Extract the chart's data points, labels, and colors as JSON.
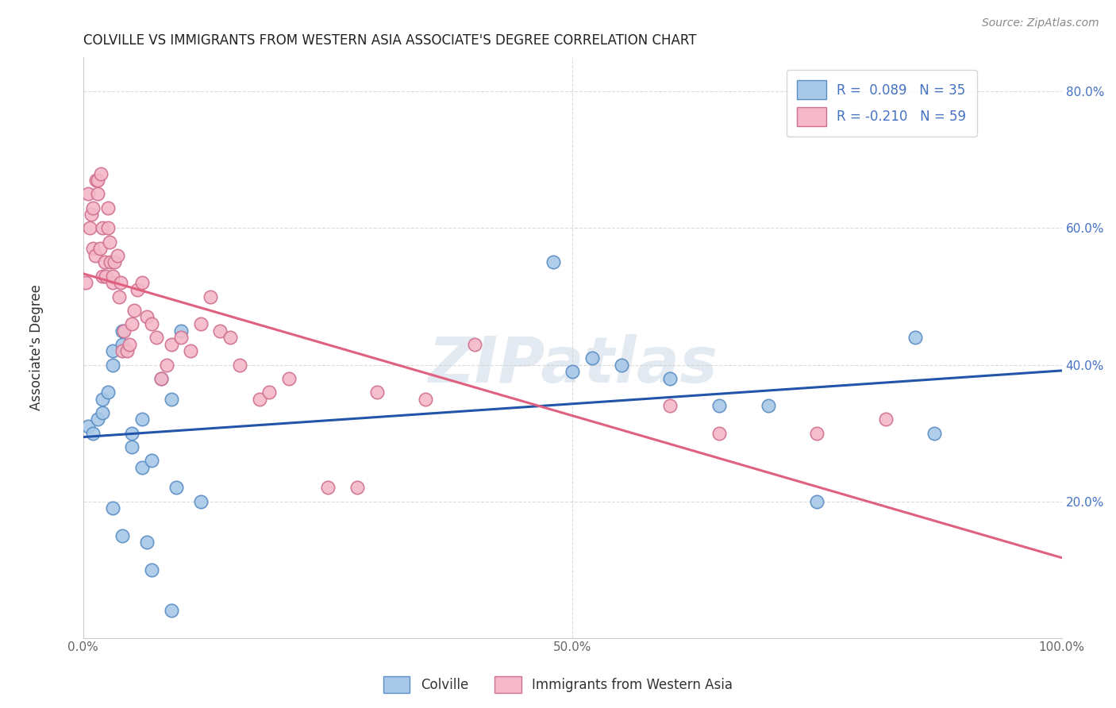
{
  "title": "COLVILLE VS IMMIGRANTS FROM WESTERN ASIA ASSOCIATE'S DEGREE CORRELATION CHART",
  "source": "Source: ZipAtlas.com",
  "ylabel": "Associate's Degree",
  "xlabel": "",
  "xlim": [
    0.0,
    1.0
  ],
  "ylim": [
    0.0,
    0.85
  ],
  "xticks": [
    0.0,
    0.5,
    1.0
  ],
  "xticklabels": [
    "0.0%",
    "50.0%",
    "100.0%"
  ],
  "yticks": [
    0.2,
    0.4,
    0.6,
    0.8
  ],
  "yticklabels": [
    "20.0%",
    "40.0%",
    "60.0%",
    "80.0%"
  ],
  "colville_color": "#A8C8E8",
  "colville_edge": "#5B8EC4",
  "immigrants_color": "#F4B8C8",
  "immigrants_edge": "#D07090",
  "colville_R": 0.089,
  "colville_N": 35,
  "immigrants_R": -0.21,
  "immigrants_N": 59,
  "colville_line_color": "#2255AA",
  "immigrants_line_color": "#E06080",
  "colville_scatter_x": [
    0.005,
    0.01,
    0.015,
    0.02,
    0.02,
    0.025,
    0.03,
    0.03,
    0.04,
    0.04,
    0.05,
    0.05,
    0.06,
    0.065,
    0.07,
    0.08,
    0.09,
    0.095,
    0.1,
    0.48,
    0.5,
    0.52,
    0.55,
    0.6,
    0.65,
    0.7,
    0.75,
    0.85,
    0.87,
    0.03,
    0.04,
    0.06,
    0.07,
    0.09,
    0.12
  ],
  "colville_scatter_y": [
    0.31,
    0.3,
    0.32,
    0.33,
    0.35,
    0.36,
    0.42,
    0.4,
    0.43,
    0.45,
    0.3,
    0.28,
    0.32,
    0.14,
    0.1,
    0.38,
    0.35,
    0.22,
    0.45,
    0.55,
    0.39,
    0.41,
    0.4,
    0.38,
    0.34,
    0.34,
    0.2,
    0.44,
    0.3,
    0.19,
    0.15,
    0.25,
    0.26,
    0.04,
    0.2
  ],
  "immigrants_scatter_x": [
    0.003,
    0.005,
    0.007,
    0.008,
    0.01,
    0.01,
    0.012,
    0.013,
    0.015,
    0.015,
    0.017,
    0.018,
    0.02,
    0.02,
    0.022,
    0.023,
    0.025,
    0.025,
    0.027,
    0.028,
    0.03,
    0.03,
    0.032,
    0.035,
    0.037,
    0.038,
    0.04,
    0.042,
    0.045,
    0.047,
    0.05,
    0.052,
    0.055,
    0.06,
    0.065,
    0.07,
    0.075,
    0.08,
    0.085,
    0.09,
    0.1,
    0.11,
    0.12,
    0.13,
    0.14,
    0.15,
    0.16,
    0.18,
    0.19,
    0.21,
    0.25,
    0.28,
    0.3,
    0.35,
    0.4,
    0.6,
    0.65,
    0.75,
    0.82
  ],
  "immigrants_scatter_y": [
    0.52,
    0.65,
    0.6,
    0.62,
    0.63,
    0.57,
    0.56,
    0.67,
    0.67,
    0.65,
    0.57,
    0.68,
    0.53,
    0.6,
    0.55,
    0.53,
    0.63,
    0.6,
    0.58,
    0.55,
    0.52,
    0.53,
    0.55,
    0.56,
    0.5,
    0.52,
    0.42,
    0.45,
    0.42,
    0.43,
    0.46,
    0.48,
    0.51,
    0.52,
    0.47,
    0.46,
    0.44,
    0.38,
    0.4,
    0.43,
    0.44,
    0.42,
    0.46,
    0.5,
    0.45,
    0.44,
    0.4,
    0.35,
    0.36,
    0.38,
    0.22,
    0.22,
    0.36,
    0.35,
    0.43,
    0.34,
    0.3,
    0.3,
    0.32
  ],
  "background_color": "#FFFFFF",
  "grid_color": "#CCCCCC",
  "watermark": "ZIPatlas",
  "legend_label_blue": "Colville",
  "legend_label_pink": "Immigrants from Western Asia"
}
